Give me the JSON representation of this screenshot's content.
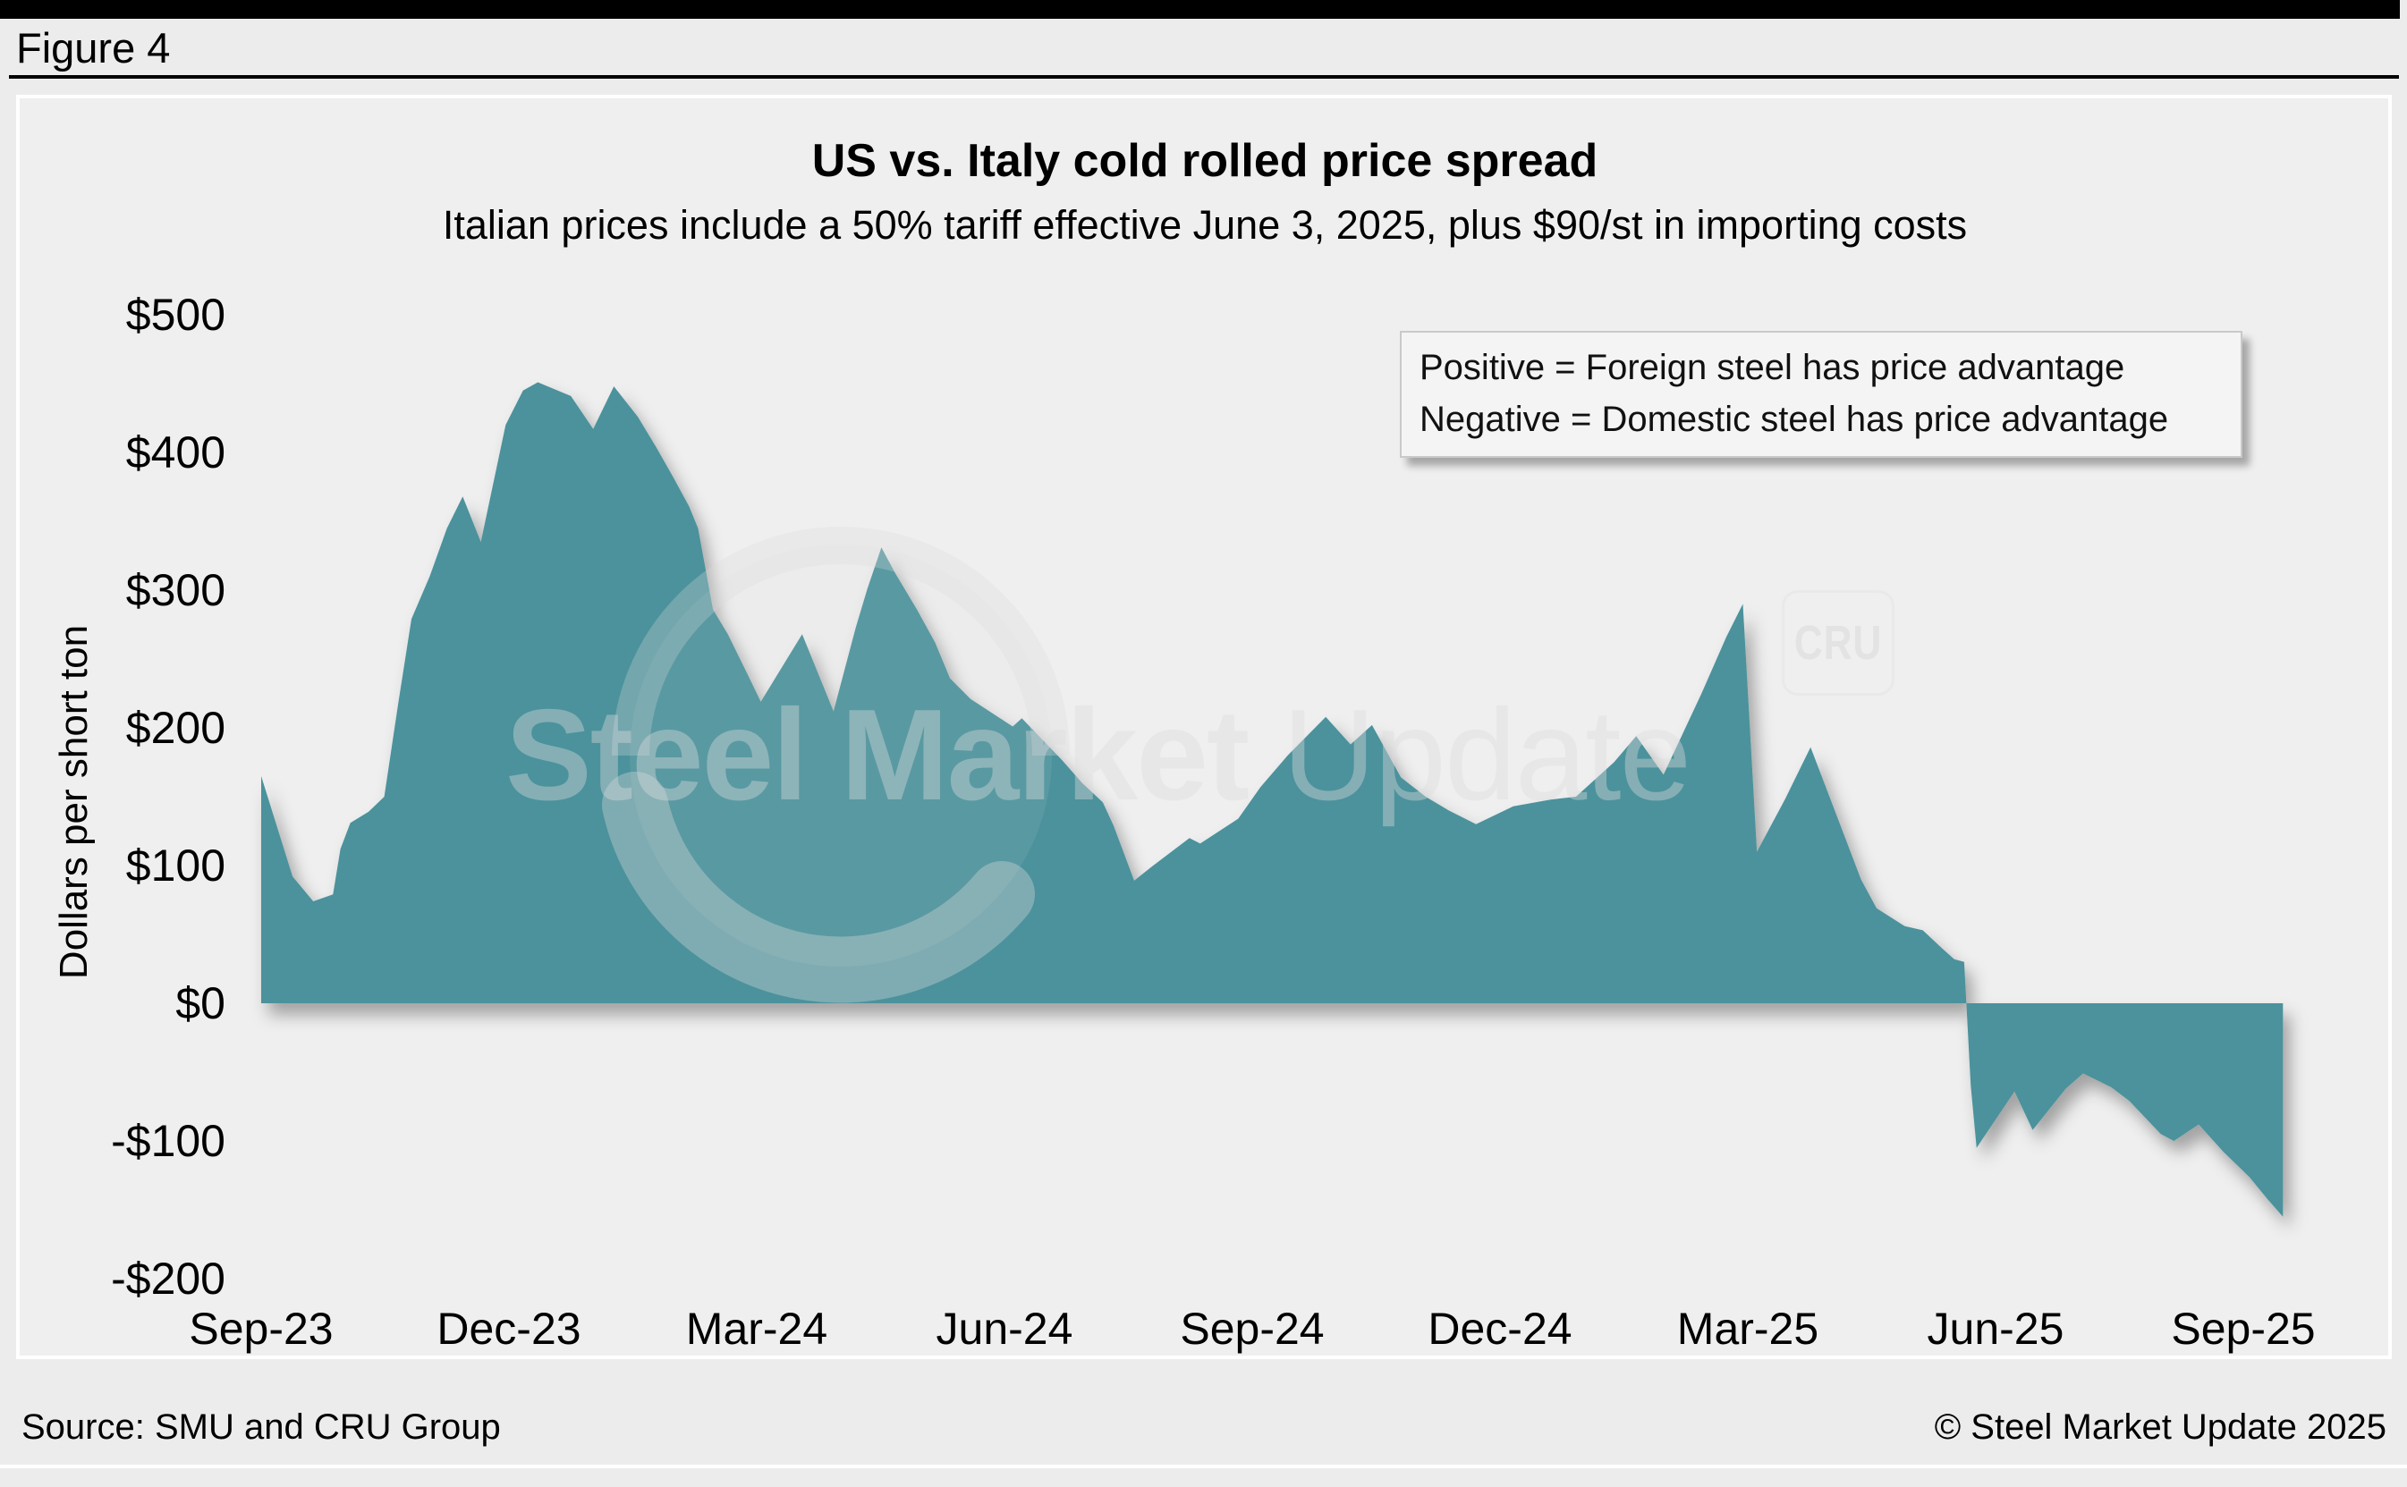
{
  "figure_label": "Figure 4",
  "header": {
    "title": "US vs. Italy cold rolled price spread",
    "subtitle": "Italian prices include a 50% tariff effective June 3, 2025, plus $90/st in importing costs"
  },
  "legend": {
    "line1": "Positive = Foreign steel has price advantage",
    "line2": "Negative = Domestic steel has price advantage"
  },
  "watermark": {
    "main": "Steel Market",
    "secondary": " Update",
    "cru": "CRU"
  },
  "footer": {
    "source": "Source: SMU and CRU Group",
    "copyright": "© Steel Market Update 2025"
  },
  "colors": {
    "area_fill": "#4B929C",
    "page_background": "#ececec",
    "panel_background": "#efefef",
    "topbar": "#000000"
  },
  "chart_data": {
    "type": "area",
    "title": "US vs. Italy cold rolled price spread",
    "subtitle": "Italian prices include a 50% tariff effective June 3, 2025, plus $90/st in importing costs",
    "ylabel": "Dollars per short ton",
    "xlabel": "",
    "x_unit": "months since Sep-2023",
    "ylim": [
      -200,
      500
    ],
    "baseline": 0,
    "grid": false,
    "legend_position": "top-right",
    "annotations": [
      "Positive = Foreign steel has price advantage",
      "Negative = Domestic steel has price advantage"
    ],
    "x_ticks": [
      {
        "m": 0,
        "label": "Sep-23"
      },
      {
        "m": 3,
        "label": "Dec-23"
      },
      {
        "m": 6,
        "label": "Mar-24"
      },
      {
        "m": 9,
        "label": "Jun-24"
      },
      {
        "m": 12,
        "label": "Sep-24"
      },
      {
        "m": 15,
        "label": "Dec-24"
      },
      {
        "m": 18,
        "label": "Mar-25"
      },
      {
        "m": 21,
        "label": "Jun-25"
      },
      {
        "m": 24,
        "label": "Sep-25"
      }
    ],
    "y_ticks": [
      {
        "v": 500,
        "label": "$500"
      },
      {
        "v": 400,
        "label": "$400"
      },
      {
        "v": 300,
        "label": "$300"
      },
      {
        "v": 200,
        "label": "$200"
      },
      {
        "v": 100,
        "label": "$100"
      },
      {
        "v": 0,
        "label": "$0"
      },
      {
        "v": -100,
        "label": "-$100"
      },
      {
        "v": -200,
        "label": "-$200"
      }
    ],
    "series": [
      {
        "name": "US minus Italy cold rolled price spread ($/short ton)",
        "fill": "#4B929C",
        "points": [
          [
            0,
            165
          ],
          [
            0.38,
            92
          ],
          [
            0.63,
            74
          ],
          [
            0.87,
            79
          ],
          [
            0.96,
            112
          ],
          [
            1.08,
            131
          ],
          [
            1.3,
            139
          ],
          [
            1.49,
            150
          ],
          [
            1.66,
            218
          ],
          [
            1.82,
            279
          ],
          [
            2.04,
            310
          ],
          [
            2.25,
            345
          ],
          [
            2.44,
            368
          ],
          [
            2.66,
            335
          ],
          [
            2.96,
            420
          ],
          [
            3.17,
            445
          ],
          [
            3.35,
            451
          ],
          [
            3.75,
            441
          ],
          [
            4.02,
            417
          ],
          [
            4.27,
            448
          ],
          [
            4.56,
            426
          ],
          [
            4.78,
            404
          ],
          [
            4.99,
            382
          ],
          [
            5.18,
            361
          ],
          [
            5.29,
            345
          ],
          [
            5.47,
            286
          ],
          [
            5.65,
            268
          ],
          [
            5.88,
            240
          ],
          [
            6.05,
            219
          ],
          [
            6.55,
            268
          ],
          [
            6.93,
            212
          ],
          [
            7.2,
            273
          ],
          [
            7.34,
            301
          ],
          [
            7.51,
            331
          ],
          [
            7.68,
            312
          ],
          [
            7.79,
            301
          ],
          [
            7.94,
            286
          ],
          [
            8.16,
            262
          ],
          [
            8.34,
            236
          ],
          [
            8.59,
            221
          ],
          [
            9.1,
            201
          ],
          [
            9.21,
            207
          ],
          [
            9.69,
            177
          ],
          [
            9.94,
            160
          ],
          [
            10.19,
            146
          ],
          [
            10.32,
            129
          ],
          [
            10.57,
            89
          ],
          [
            10.78,
            99
          ],
          [
            11.24,
            120
          ],
          [
            11.37,
            116
          ],
          [
            11.83,
            134
          ],
          [
            12.1,
            157
          ],
          [
            12.43,
            180
          ],
          [
            12.89,
            208
          ],
          [
            13.19,
            188
          ],
          [
            13.45,
            202
          ],
          [
            13.8,
            164
          ],
          [
            14.1,
            150
          ],
          [
            14.38,
            140
          ],
          [
            14.71,
            130
          ],
          [
            15.16,
            143
          ],
          [
            15.62,
            148
          ],
          [
            15.92,
            150
          ],
          [
            16.38,
            175
          ],
          [
            16.65,
            194
          ],
          [
            16.98,
            166
          ],
          [
            17.44,
            225
          ],
          [
            17.74,
            266
          ],
          [
            17.94,
            290
          ],
          [
            18.11,
            110
          ],
          [
            18.45,
            148
          ],
          [
            18.76,
            186
          ],
          [
            19.11,
            131
          ],
          [
            19.37,
            90
          ],
          [
            19.56,
            69
          ],
          [
            19.9,
            56
          ],
          [
            20.12,
            53
          ],
          [
            20.35,
            40
          ],
          [
            20.5,
            32
          ],
          [
            20.62,
            30
          ],
          [
            20.7,
            -60
          ],
          [
            20.77,
            -105
          ],
          [
            21.23,
            -64
          ],
          [
            21.45,
            -92
          ],
          [
            21.85,
            -62
          ],
          [
            22.06,
            -51
          ],
          [
            22.4,
            -61
          ],
          [
            22.62,
            -71
          ],
          [
            23,
            -95
          ],
          [
            23.16,
            -100
          ],
          [
            23.46,
            -88
          ],
          [
            23.76,
            -108
          ],
          [
            24.07,
            -126
          ],
          [
            24.29,
            -142
          ],
          [
            24.48,
            -155
          ]
        ]
      }
    ]
  }
}
